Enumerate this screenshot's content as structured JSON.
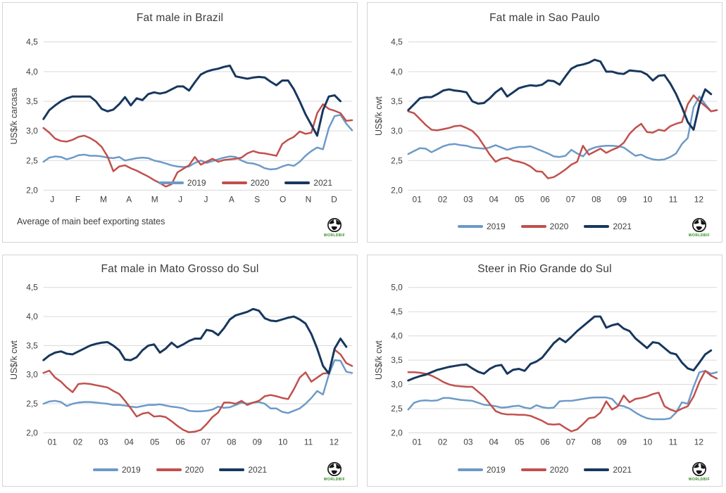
{
  "logo": {
    "text": "WORLDBIF"
  },
  "colors": {
    "grid": "#d9d9d9",
    "axis_text": "#404040",
    "title_text": "#3b3b3b"
  },
  "chart_data": [
    {
      "type": "line",
      "title": "Fat male in Brazil",
      "ylabel": "US$/k carcasa",
      "ylim": [
        2.0,
        4.5
      ],
      "ytick_labels": [
        "2,0",
        "2,5",
        "3,0",
        "3,5",
        "4,0",
        "4,5"
      ],
      "x_labels": [
        "J",
        "F",
        "M",
        "A",
        "M",
        "J",
        "J",
        "A",
        "S",
        "O",
        "N",
        "D"
      ],
      "grid": true,
      "legend_position": "inside-bottom-right",
      "footnote": "Average of main beef exporting states",
      "series": [
        {
          "name": "2019",
          "color": "#6d9ac8",
          "width": 2.5,
          "values": [
            2.48,
            2.55,
            2.57,
            2.56,
            2.52,
            2.55,
            2.59,
            2.6,
            2.58,
            2.58,
            2.57,
            2.55,
            2.54,
            2.56,
            2.5,
            2.52,
            2.54,
            2.55,
            2.54,
            2.5,
            2.48,
            2.45,
            2.42,
            2.4,
            2.39,
            2.4,
            2.46,
            2.5,
            2.46,
            2.49,
            2.52,
            2.55,
            2.57,
            2.56,
            2.5,
            2.46,
            2.45,
            2.42,
            2.37,
            2.35,
            2.36,
            2.4,
            2.43,
            2.41,
            2.48,
            2.58,
            2.66,
            2.72,
            2.69,
            3.05,
            3.25,
            3.27,
            3.12,
            3.01
          ]
        },
        {
          "name": "2020",
          "color": "#c0504d",
          "width": 2.5,
          "values": [
            3.05,
            2.97,
            2.87,
            2.83,
            2.82,
            2.85,
            2.9,
            2.92,
            2.88,
            2.82,
            2.73,
            2.57,
            2.32,
            2.4,
            2.42,
            2.37,
            2.33,
            2.28,
            2.23,
            2.17,
            2.12,
            2.06,
            2.1,
            2.3,
            2.36,
            2.42,
            2.56,
            2.43,
            2.48,
            2.53,
            2.48,
            2.51,
            2.52,
            2.53,
            2.55,
            2.62,
            2.66,
            2.63,
            2.62,
            2.6,
            2.58,
            2.78,
            2.85,
            2.9,
            2.99,
            2.95,
            2.97,
            3.3,
            3.45,
            3.37,
            3.34,
            3.3,
            3.17,
            3.18
          ]
        },
        {
          "name": "2021",
          "color": "#17375e",
          "width": 3.0,
          "values": [
            3.2,
            3.35,
            3.43,
            3.5,
            3.55,
            3.58,
            3.58,
            3.58,
            3.58,
            3.5,
            3.37,
            3.33,
            3.36,
            3.45,
            3.57,
            3.43,
            3.55,
            3.52,
            3.62,
            3.65,
            3.63,
            3.65,
            3.7,
            3.75,
            3.75,
            3.68,
            3.82,
            3.95,
            4.0,
            4.03,
            4.05,
            4.08,
            4.1,
            3.92,
            3.9,
            3.88,
            3.9,
            3.91,
            3.9,
            3.83,
            3.77,
            3.85,
            3.85,
            3.7,
            3.5,
            3.28,
            3.1,
            2.92,
            3.35,
            3.58,
            3.6,
            3.5
          ]
        }
      ]
    },
    {
      "type": "line",
      "title": "Fat male in Sao Paulo",
      "ylabel": "US$/k cwt",
      "ylim": [
        2.0,
        4.5
      ],
      "ytick_labels": [
        "2,0",
        "2,5",
        "3,0",
        "3,5",
        "4,0",
        "4,5"
      ],
      "x_labels": [
        "01",
        "02",
        "03",
        "04",
        "05",
        "06",
        "07",
        "08",
        "09",
        "10",
        "11",
        "12"
      ],
      "grid": true,
      "legend_position": "below-center",
      "series": [
        {
          "name": "2019",
          "color": "#6d9ac8",
          "width": 2.5,
          "values": [
            2.61,
            2.66,
            2.71,
            2.7,
            2.64,
            2.69,
            2.74,
            2.77,
            2.78,
            2.76,
            2.75,
            2.72,
            2.71,
            2.7,
            2.72,
            2.76,
            2.72,
            2.68,
            2.71,
            2.73,
            2.73,
            2.74,
            2.7,
            2.66,
            2.62,
            2.57,
            2.56,
            2.58,
            2.68,
            2.62,
            2.57,
            2.68,
            2.72,
            2.74,
            2.75,
            2.75,
            2.74,
            2.72,
            2.65,
            2.58,
            2.6,
            2.55,
            2.52,
            2.51,
            2.52,
            2.56,
            2.62,
            2.78,
            2.88,
            3.4,
            3.58,
            3.45,
            3.33,
            3.35
          ]
        },
        {
          "name": "2020",
          "color": "#c0504d",
          "width": 2.5,
          "values": [
            3.33,
            3.3,
            3.2,
            3.1,
            3.02,
            3.01,
            3.03,
            3.05,
            3.08,
            3.09,
            3.05,
            3.0,
            2.9,
            2.75,
            2.6,
            2.48,
            2.53,
            2.55,
            2.5,
            2.48,
            2.45,
            2.4,
            2.32,
            2.31,
            2.2,
            2.22,
            2.28,
            2.35,
            2.43,
            2.48,
            2.75,
            2.6,
            2.65,
            2.7,
            2.63,
            2.68,
            2.72,
            2.8,
            2.95,
            3.05,
            3.12,
            2.98,
            2.97,
            3.02,
            3.0,
            3.08,
            3.12,
            3.15,
            3.45,
            3.6,
            3.5,
            3.42,
            3.33,
            3.35
          ]
        },
        {
          "name": "2021",
          "color": "#17375e",
          "width": 3.0,
          "values": [
            3.35,
            3.45,
            3.55,
            3.57,
            3.57,
            3.62,
            3.68,
            3.7,
            3.68,
            3.67,
            3.65,
            3.5,
            3.46,
            3.47,
            3.55,
            3.65,
            3.72,
            3.58,
            3.65,
            3.72,
            3.75,
            3.77,
            3.76,
            3.78,
            3.85,
            3.84,
            3.78,
            3.92,
            4.05,
            4.1,
            4.12,
            4.15,
            4.2,
            4.17,
            4.0,
            4.0,
            3.97,
            3.96,
            4.02,
            4.01,
            4.0,
            3.95,
            3.85,
            3.93,
            3.94,
            3.8,
            3.62,
            3.4,
            3.15,
            3.02,
            3.45,
            3.7,
            3.62
          ]
        }
      ]
    },
    {
      "type": "line",
      "title": "Fat male in Mato Grosso do Sul",
      "ylabel": "US$/k cwt",
      "ylim": [
        2.0,
        4.5
      ],
      "ytick_labels": [
        "2,0",
        "2,5",
        "3,0",
        "3,5",
        "4,0",
        "4,5"
      ],
      "x_labels": [
        "01",
        "02",
        "03",
        "04",
        "05",
        "06",
        "07",
        "08",
        "09",
        "10",
        "11",
        "12"
      ],
      "grid": true,
      "legend_position": "below-center",
      "series": [
        {
          "name": "2019",
          "color": "#6d9ac8",
          "width": 2.5,
          "values": [
            2.5,
            2.54,
            2.55,
            2.53,
            2.46,
            2.5,
            2.52,
            2.53,
            2.53,
            2.52,
            2.51,
            2.5,
            2.48,
            2.48,
            2.47,
            2.45,
            2.44,
            2.46,
            2.48,
            2.48,
            2.49,
            2.47,
            2.45,
            2.44,
            2.42,
            2.38,
            2.37,
            2.37,
            2.38,
            2.4,
            2.45,
            2.43,
            2.44,
            2.48,
            2.52,
            2.5,
            2.52,
            2.53,
            2.5,
            2.42,
            2.42,
            2.36,
            2.34,
            2.38,
            2.42,
            2.5,
            2.6,
            2.72,
            2.66,
            3.0,
            3.25,
            3.24,
            3.05,
            3.03
          ]
        },
        {
          "name": "2020",
          "color": "#c0504d",
          "width": 2.5,
          "values": [
            3.03,
            3.07,
            2.95,
            2.88,
            2.78,
            2.7,
            2.84,
            2.85,
            2.84,
            2.82,
            2.8,
            2.78,
            2.72,
            2.67,
            2.55,
            2.42,
            2.28,
            2.33,
            2.35,
            2.28,
            2.29,
            2.27,
            2.2,
            2.12,
            2.05,
            2.01,
            2.02,
            2.05,
            2.15,
            2.27,
            2.35,
            2.52,
            2.52,
            2.5,
            2.55,
            2.48,
            2.52,
            2.55,
            2.63,
            2.65,
            2.63,
            2.6,
            2.58,
            2.75,
            2.95,
            3.04,
            2.88,
            2.95,
            3.02,
            3.03,
            3.43,
            3.35,
            3.2,
            3.15
          ]
        },
        {
          "name": "2021",
          "color": "#17375e",
          "width": 3.0,
          "values": [
            3.25,
            3.33,
            3.38,
            3.4,
            3.36,
            3.35,
            3.4,
            3.45,
            3.5,
            3.53,
            3.55,
            3.56,
            3.5,
            3.42,
            3.26,
            3.25,
            3.3,
            3.42,
            3.5,
            3.52,
            3.38,
            3.45,
            3.55,
            3.47,
            3.52,
            3.58,
            3.62,
            3.62,
            3.77,
            3.75,
            3.68,
            3.8,
            3.95,
            4.02,
            4.05,
            4.08,
            4.13,
            4.1,
            3.97,
            3.93,
            3.92,
            3.95,
            3.98,
            4.0,
            3.95,
            3.88,
            3.7,
            3.45,
            3.15,
            3.02,
            3.45,
            3.62,
            3.48
          ]
        }
      ]
    },
    {
      "type": "line",
      "title": "Steer in Rio Grande do Sul",
      "ylabel": "US$/k cwt",
      "ylim": [
        2.0,
        5.0
      ],
      "ytick_labels": [
        "2,0",
        "2,5",
        "3,0",
        "3,5",
        "4,0",
        "4,5",
        "5,0"
      ],
      "x_labels": [
        "01",
        "02",
        "03",
        "04",
        "05",
        "06",
        "07",
        "08",
        "09",
        "10",
        "11",
        "12"
      ],
      "grid": true,
      "legend_position": "below-center",
      "series": [
        {
          "name": "2019",
          "color": "#6d9ac8",
          "width": 2.5,
          "values": [
            2.48,
            2.62,
            2.66,
            2.67,
            2.66,
            2.67,
            2.72,
            2.72,
            2.7,
            2.68,
            2.67,
            2.66,
            2.62,
            2.58,
            2.57,
            2.55,
            2.52,
            2.53,
            2.55,
            2.56,
            2.52,
            2.5,
            2.57,
            2.53,
            2.51,
            2.52,
            2.65,
            2.66,
            2.66,
            2.68,
            2.7,
            2.72,
            2.73,
            2.73,
            2.73,
            2.7,
            2.57,
            2.55,
            2.5,
            2.42,
            2.35,
            2.3,
            2.28,
            2.28,
            2.28,
            2.3,
            2.42,
            2.63,
            2.6,
            2.95,
            3.25,
            3.28,
            3.22,
            3.25
          ]
        },
        {
          "name": "2020",
          "color": "#c0504d",
          "width": 2.5,
          "values": [
            3.25,
            3.25,
            3.24,
            3.22,
            3.18,
            3.12,
            3.05,
            3.0,
            2.97,
            2.96,
            2.95,
            2.95,
            2.85,
            2.75,
            2.6,
            2.45,
            2.4,
            2.38,
            2.38,
            2.37,
            2.37,
            2.35,
            2.3,
            2.25,
            2.18,
            2.17,
            2.18,
            2.1,
            2.03,
            2.07,
            2.18,
            2.3,
            2.32,
            2.42,
            2.65,
            2.48,
            2.55,
            2.77,
            2.63,
            2.7,
            2.72,
            2.75,
            2.8,
            2.83,
            2.55,
            2.48,
            2.44,
            2.5,
            2.55,
            2.75,
            3.05,
            3.28,
            3.18,
            3.12
          ]
        },
        {
          "name": "2021",
          "color": "#17375e",
          "width": 3.0,
          "values": [
            3.08,
            3.13,
            3.17,
            3.2,
            3.25,
            3.3,
            3.33,
            3.36,
            3.38,
            3.4,
            3.41,
            3.33,
            3.26,
            3.22,
            3.32,
            3.38,
            3.4,
            3.22,
            3.3,
            3.32,
            3.28,
            3.42,
            3.47,
            3.55,
            3.7,
            3.85,
            3.95,
            3.87,
            3.98,
            4.1,
            4.2,
            4.3,
            4.4,
            4.4,
            4.17,
            4.22,
            4.25,
            4.15,
            4.1,
            3.95,
            3.85,
            3.75,
            3.87,
            3.85,
            3.75,
            3.65,
            3.62,
            3.45,
            3.33,
            3.29,
            3.45,
            3.62,
            3.7
          ]
        }
      ]
    }
  ]
}
